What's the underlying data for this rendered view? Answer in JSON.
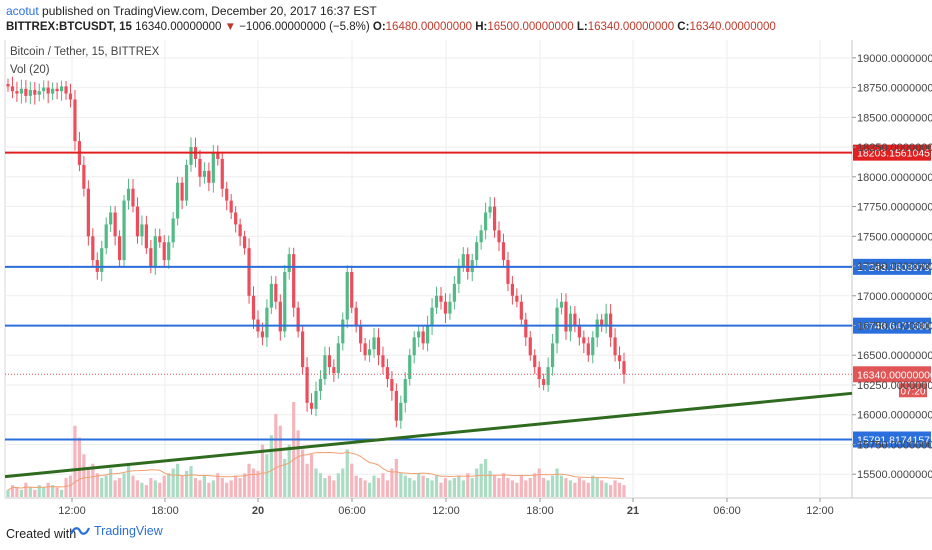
{
  "header": {
    "author": "acotut",
    "published_text": "published on TradingView.com, December 20, 2017 16:37 EST",
    "symbol": "BITTREX:BTCUSDT, 15",
    "last": "16340.00000000",
    "change_arrow": "▼",
    "change": "−1006.00000000 (−5.8%)",
    "o_label": "O:",
    "o_value": "16480.00000000",
    "h_label": "H:",
    "h_value": "16500.00000000",
    "l_label": "L:",
    "l_value": "16340.00000000",
    "c_label": "C:",
    "c_value": "16340.00000000"
  },
  "legend": {
    "title": "Bitcoin / Tether, 15, BITTREX",
    "volume": "Vol (20)"
  },
  "footer": {
    "created": "Created with",
    "brand": "TradingView"
  },
  "chart_data": {
    "type": "candlestick",
    "ylim": [
      15300,
      19150
    ],
    "y_ticks": [
      15500,
      15750,
      16000,
      16250,
      16500,
      16750,
      17000,
      17250,
      17500,
      17750,
      18000,
      18250,
      18500,
      18750,
      19000
    ],
    "y_tick_labels": [
      "15500.00000000",
      "15750.00000000",
      "16000.00000000",
      "16250.00000000",
      "16500.00000000",
      "16750.00000000",
      "17000.00000000",
      "17250.00000000",
      "17500.00000000",
      "17750.00000000",
      "18000.00000000",
      "18250.00000000",
      "18500.00000000",
      "18750.00000000",
      "19000.00000000"
    ],
    "x_tick_labels": [
      "12:00",
      "18:00",
      "20",
      "06:00",
      "12:00",
      "18:00",
      "21",
      "06:00",
      "12:00"
    ],
    "horizontal_lines": [
      {
        "value": 18203.15610457,
        "label": "18203.15610457",
        "color": "#e02020"
      },
      {
        "value": 17243.1608979,
        "label": "17243.16089790",
        "color": "#2a6fdb"
      },
      {
        "value": 16748.647168,
        "label": "16748.64716800",
        "color": "#2a6fdb"
      },
      {
        "value": 15791.81741573,
        "label": "15791.81741573",
        "color": "#2a6fdb"
      }
    ],
    "last_price": {
      "value": 16340,
      "label": "16340.00000000",
      "countdown": "07:20",
      "color": "#e05555"
    },
    "trendline": {
      "from_value": 15480,
      "to_value": 16180,
      "color": "#2e6b1f"
    },
    "bar_closes": [
      18760,
      18720,
      18700,
      18740,
      18680,
      18730,
      18690,
      18720,
      18750,
      18700,
      18740,
      18720,
      18760,
      18700,
      18650,
      18300,
      18100,
      17900,
      17500,
      17300,
      17200,
      17400,
      17600,
      17700,
      17500,
      17300,
      17800,
      17900,
      17750,
      17500,
      17600,
      17400,
      17250,
      17500,
      17450,
      17300,
      17450,
      17650,
      17950,
      17800,
      18100,
      18250,
      18150,
      18000,
      18050,
      17950,
      18200,
      18150,
      17900,
      17800,
      17700,
      17600,
      17500,
      17400,
      17000,
      16800,
      16700,
      16650,
      16900,
      17100,
      16950,
      16700,
      17200,
      17350,
      16900,
      16700,
      16400,
      16100,
      16050,
      16200,
      16300,
      16500,
      16400,
      16350,
      16600,
      16800,
      17200,
      16900,
      16750,
      16600,
      16500,
      16550,
      16650,
      16500,
      16400,
      16300,
      16200,
      15950,
      16100,
      16300,
      16500,
      16650,
      16700,
      16600,
      16750,
      16900,
      17000,
      16950,
      16850,
      16950,
      17100,
      17250,
      17350,
      17200,
      17300,
      17450,
      17550,
      17700,
      17750,
      17550,
      17450,
      17300,
      17100,
      17000,
      16950,
      16800,
      16650,
      16500,
      16400,
      16300,
      16250,
      16400,
      16600,
      16900,
      16950,
      16700,
      16850,
      16750,
      16650,
      16600,
      16500,
      16650,
      16800,
      16750,
      16850,
      16650,
      16500,
      16450,
      16340
    ],
    "volume_series": [
      3,
      5,
      4,
      3,
      6,
      4,
      3,
      5,
      4,
      6,
      5,
      4,
      3,
      8,
      9,
      30,
      25,
      18,
      12,
      14,
      10,
      8,
      9,
      12,
      7,
      8,
      10,
      14,
      9,
      7,
      6,
      5,
      8,
      7,
      6,
      9,
      10,
      12,
      14,
      9,
      11,
      13,
      8,
      7,
      9,
      6,
      7,
      10,
      8,
      6,
      7,
      9,
      8,
      10,
      14,
      12,
      11,
      22,
      18,
      26,
      35,
      30,
      16,
      22,
      40,
      28,
      20,
      14,
      18,
      12,
      10,
      8,
      9,
      7,
      10,
      12,
      20,
      14,
      9,
      8,
      7,
      6,
      9,
      8,
      10,
      7,
      12,
      16,
      10,
      9,
      8,
      7,
      10,
      9,
      8,
      7,
      9,
      6,
      8,
      7,
      8,
      9,
      7,
      10,
      8,
      12,
      14,
      16,
      11,
      9,
      8,
      10,
      8,
      7,
      6,
      9,
      7,
      8,
      10,
      12,
      8,
      7,
      9,
      12,
      9,
      8,
      7,
      6,
      8,
      7,
      6,
      9,
      8,
      7,
      6,
      5,
      7,
      6,
      5
    ]
  }
}
